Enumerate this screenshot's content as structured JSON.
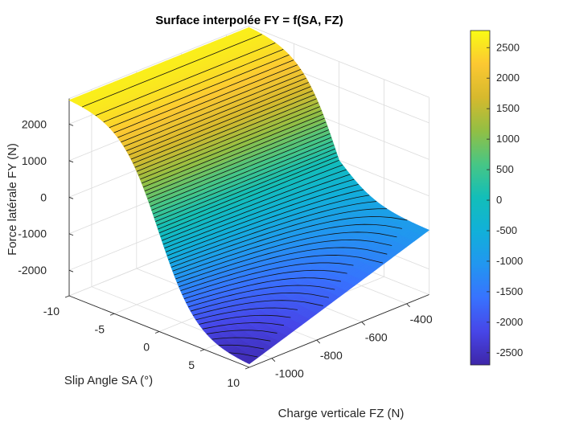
{
  "chart_data": {
    "type": "surface",
    "title": "Surface interpolée FY = f(SA, FZ)",
    "xlabel": "Slip Angle SA (°)",
    "ylabel": "Charge verticale FZ (N)",
    "zlabel": "Force latérale FY (N)",
    "x_ticks": [
      "-10",
      "-5",
      "0",
      "5",
      "10"
    ],
    "y_ticks": [
      "-1000",
      "-800",
      "-600",
      "-400"
    ],
    "z_ticks": [
      "-2000",
      "-1000",
      "0",
      "1000",
      "2000"
    ],
    "xlim": [
      -10,
      10
    ],
    "ylim": [
      -1100,
      -300
    ],
    "zlim": [
      -2700,
      2700
    ],
    "colorbar": {
      "min": -2700,
      "max": 2780,
      "ticks": [
        "2500",
        "2000",
        "1500",
        "1000",
        "500",
        "0",
        "-500",
        "-1000",
        "-1500",
        "-2000",
        "-2500"
      ]
    },
    "corner_values": [
      {
        "SA": -10,
        "FZ": -1100,
        "FY": 2700
      },
      {
        "SA": -10,
        "FZ": -300,
        "FY": 2700
      },
      {
        "SA": 10,
        "FZ": -1100,
        "FY": -2650
      },
      {
        "SA": 10,
        "FZ": -300,
        "FY": -950
      }
    ],
    "grid": true,
    "colormap": "parula"
  }
}
